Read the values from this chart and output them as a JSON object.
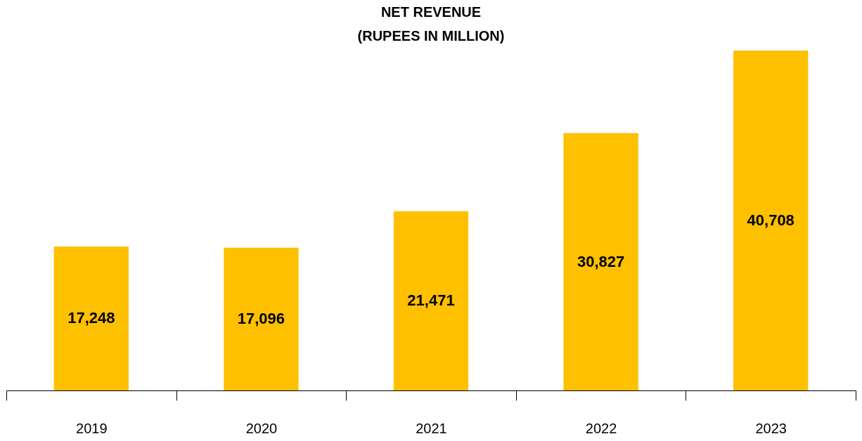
{
  "chart_data": {
    "type": "bar",
    "title": "NET REVENUE",
    "subtitle": "(RUPEES IN MILLION)",
    "categories": [
      "2019",
      "2020",
      "2021",
      "2022",
      "2023"
    ],
    "values": [
      17248,
      17096,
      21471,
      30827,
      40708
    ],
    "value_labels": [
      "17,248",
      "17,096",
      "21,471",
      "30,827",
      "40,708"
    ],
    "color": "#ffc000"
  }
}
